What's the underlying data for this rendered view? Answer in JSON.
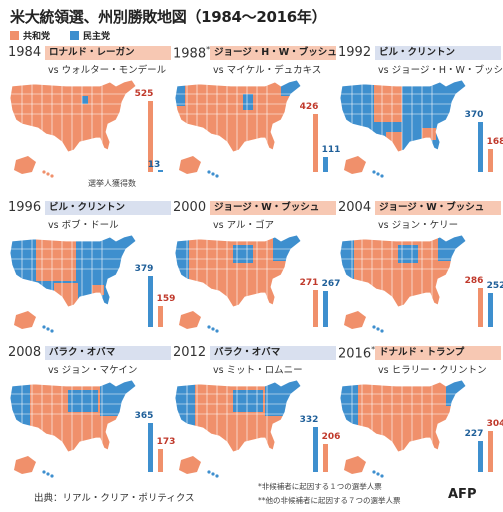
{
  "title": "米大統領選、州別勝敗地図（1984〜2016年）",
  "legend": [
    {
      "label": "共和党",
      "color": "#f0906b"
    },
    {
      "label": "民主党",
      "color": "#3e8fce"
    }
  ],
  "colors": {
    "rep": "#f0906b",
    "dem": "#3e8fce",
    "rep_banner": "#f7c8b3",
    "dem_banner": "#d9e0ef",
    "rep_text": "#c0392b",
    "dem_text": "#1f5f99"
  },
  "electoral_label": "選挙人獲得数",
  "source": "出典：リアル・クリア・ポリティクス",
  "footnotes": [
    "*非候補者に起因する１つの選挙人票",
    "**他の非候補者に起因する７つの選挙人票"
  ],
  "agency": "AFP",
  "chart_data": [
    {
      "type": "bar",
      "year": "1984",
      "year_mark": "",
      "winner": "ロナルド・レーガン",
      "winner_party": "rep",
      "opponent": "vs ウォルター・モンデール",
      "series": [
        {
          "party": "rep",
          "value": 525
        },
        {
          "party": "dem",
          "value": 13
        }
      ],
      "map_tint": "rep"
    },
    {
      "type": "bar",
      "year": "1988",
      "year_mark": "*",
      "winner": "ジョージ・H・W・ブッシュ",
      "winner_party": "rep",
      "opponent": "vs マイケル・デュカキス",
      "series": [
        {
          "party": "rep",
          "value": 426
        },
        {
          "party": "dem",
          "value": 111
        }
      ],
      "map_tint": "rep"
    },
    {
      "type": "bar",
      "year": "1992",
      "year_mark": "",
      "winner": "ビル・クリントン",
      "winner_party": "dem",
      "opponent": "vs ジョージ・H・W・ブッシュ",
      "series": [
        {
          "party": "dem",
          "value": 370
        },
        {
          "party": "rep",
          "value": 168
        }
      ],
      "map_tint": "dem"
    },
    {
      "type": "bar",
      "year": "1996",
      "year_mark": "",
      "winner": "ビル・クリントン",
      "winner_party": "dem",
      "opponent": "vs ボブ・ドール",
      "series": [
        {
          "party": "dem",
          "value": 379
        },
        {
          "party": "rep",
          "value": 159
        }
      ],
      "map_tint": "dem"
    },
    {
      "type": "bar",
      "year": "2000",
      "year_mark": "",
      "winner": "ジョージ・W・ブッシュ",
      "winner_party": "rep",
      "opponent": "vs アル・ゴア",
      "series": [
        {
          "party": "rep",
          "value": 271
        },
        {
          "party": "dem",
          "value": 267
        }
      ],
      "map_tint": "mixed"
    },
    {
      "type": "bar",
      "year": "2004",
      "year_mark": "",
      "winner": "ジョージ・W・ブッシュ",
      "winner_party": "rep",
      "opponent": "vs ジョン・ケリー",
      "series": [
        {
          "party": "rep",
          "value": 286
        },
        {
          "party": "dem",
          "value": 252
        }
      ],
      "map_tint": "mixed"
    },
    {
      "type": "bar",
      "year": "2008",
      "year_mark": "",
      "winner": "バラク・オバマ",
      "winner_party": "dem",
      "opponent": "vs ジョン・マケイン",
      "series": [
        {
          "party": "dem",
          "value": 365
        },
        {
          "party": "rep",
          "value": 173
        }
      ],
      "map_tint": "mixed"
    },
    {
      "type": "bar",
      "year": "2012",
      "year_mark": "",
      "winner": "バラク・オバマ",
      "winner_party": "dem",
      "opponent": "vs ミット・ロムニー",
      "series": [
        {
          "party": "dem",
          "value": 332
        },
        {
          "party": "rep",
          "value": 206
        }
      ],
      "map_tint": "mixed"
    },
    {
      "type": "bar",
      "year": "2016",
      "year_mark": "**",
      "winner": "ドナルド・トランプ",
      "winner_party": "rep",
      "opponent": "vs ヒラリー・クリントン",
      "series": [
        {
          "party": "dem",
          "value": 227
        },
        {
          "party": "rep",
          "value": 304
        }
      ],
      "map_tint": "mixed"
    }
  ]
}
